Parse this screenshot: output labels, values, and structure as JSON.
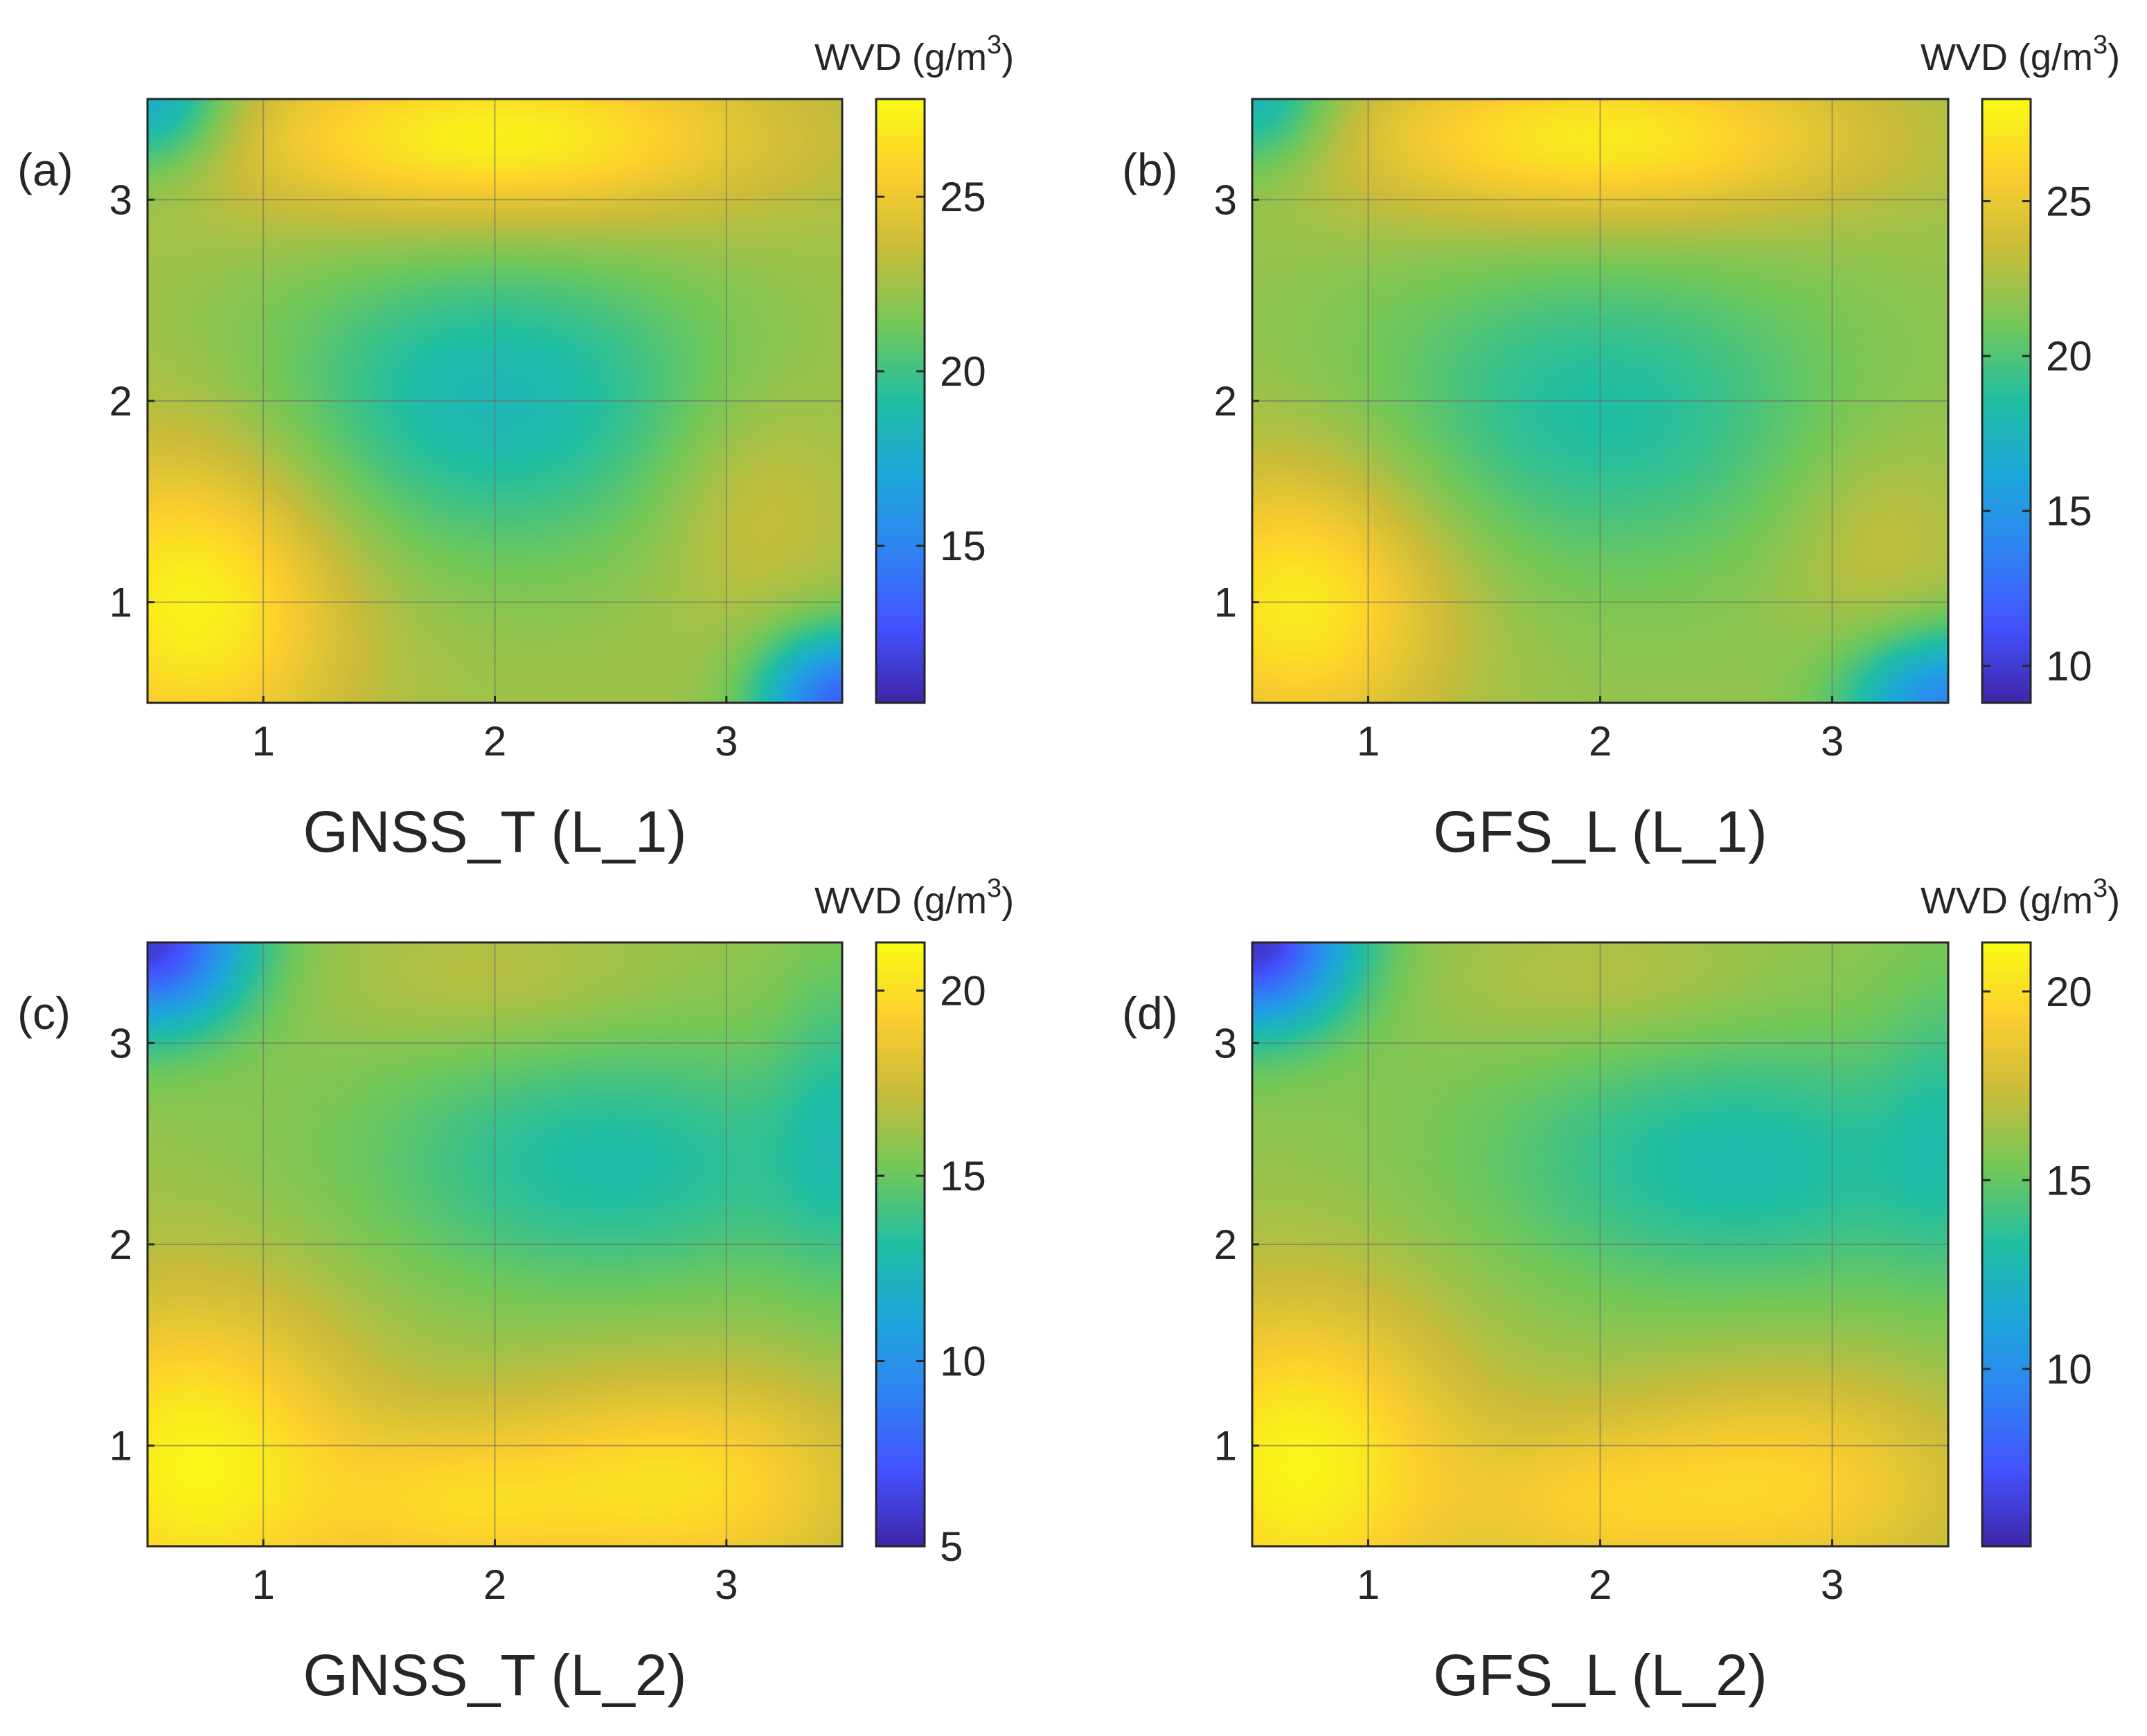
{
  "colormap": [
    "#3e26a8",
    "#4352fe",
    "#2f82f3",
    "#1da7db",
    "#1fbea3",
    "#72c859",
    "#c8bc3a",
    "#fcce2e",
    "#f9fb15"
  ],
  "chart_data": [
    {
      "type": "heatmap",
      "panel_label": "(a)",
      "xlabel": "GNSS_T (L_1)",
      "colorbar_title": "WVD (g/m",
      "colorbar_sup": "3",
      "colorbar_close": ")",
      "xlim": [
        0.5,
        3.5
      ],
      "ylim": [
        0.5,
        3.5
      ],
      "xticks": [
        1,
        2,
        3
      ],
      "yticks": [
        1,
        2,
        3
      ],
      "clim": [
        10.5,
        27.8
      ],
      "cticks": [
        15,
        20,
        25
      ],
      "base": 22.5,
      "features": [
        {
          "x": 0.7,
          "y": 1.0,
          "amp": 5.0,
          "sx": 0.45,
          "sy": 0.55
        },
        {
          "x": 2.0,
          "y": 3.3,
          "amp": 5.0,
          "sx": 0.8,
          "sy": 0.3
        },
        {
          "x": 2.0,
          "y": 2.0,
          "amp": -4.0,
          "sx": 0.7,
          "sy": 0.55
        },
        {
          "x": 0.5,
          "y": 3.5,
          "amp": -5.5,
          "sx": 0.25,
          "sy": 0.25
        },
        {
          "x": 3.5,
          "y": 0.5,
          "amp": -9.0,
          "sx": 0.25,
          "sy": 0.25
        },
        {
          "x": 3.1,
          "y": 1.5,
          "amp": 1.5,
          "sx": 0.3,
          "sy": 0.4
        }
      ]
    },
    {
      "type": "heatmap",
      "panel_label": "(b)",
      "xlabel": "GFS_L (L_1)",
      "colorbar_title": "WVD (g/m",
      "colorbar_sup": "3",
      "colorbar_close": ")",
      "xlim": [
        0.5,
        3.5
      ],
      "ylim": [
        0.5,
        3.5
      ],
      "xticks": [
        1,
        2,
        3
      ],
      "yticks": [
        1,
        2,
        3
      ],
      "clim": [
        8.8,
        28.3
      ],
      "cticks": [
        10,
        15,
        20,
        25
      ],
      "base": 22.0,
      "features": [
        {
          "x": 0.7,
          "y": 1.0,
          "amp": 5.5,
          "sx": 0.45,
          "sy": 0.5
        },
        {
          "x": 2.0,
          "y": 3.3,
          "amp": 5.5,
          "sx": 0.8,
          "sy": 0.3
        },
        {
          "x": 2.0,
          "y": 1.95,
          "amp": -3.5,
          "sx": 0.7,
          "sy": 0.55
        },
        {
          "x": 0.5,
          "y": 3.5,
          "amp": -5.0,
          "sx": 0.25,
          "sy": 0.25
        },
        {
          "x": 3.5,
          "y": 0.5,
          "amp": -8.0,
          "sx": 0.3,
          "sy": 0.25
        },
        {
          "x": 3.2,
          "y": 1.3,
          "amp": 1.5,
          "sx": 0.3,
          "sy": 0.4
        }
      ]
    },
    {
      "type": "heatmap",
      "panel_label": "(c)",
      "xlabel": "GNSS_T (L_2)",
      "colorbar_title": "WVD (g/m",
      "colorbar_sup": "3",
      "colorbar_close": ")",
      "xlim": [
        0.5,
        3.5
      ],
      "ylim": [
        0.5,
        3.5
      ],
      "xticks": [
        1,
        2,
        3
      ],
      "yticks": [
        1,
        2,
        3
      ],
      "clim": [
        5.0,
        21.3
      ],
      "cticks": [
        5,
        10,
        15,
        20
      ],
      "base": 16.0,
      "features": [
        {
          "x": 0.7,
          "y": 0.9,
          "amp": 5.0,
          "sx": 0.5,
          "sy": 0.6
        },
        {
          "x": 2.8,
          "y": 0.8,
          "amp": 4.0,
          "sx": 0.6,
          "sy": 0.4
        },
        {
          "x": 1.8,
          "y": 0.7,
          "amp": 2.5,
          "sx": 0.4,
          "sy": 0.3
        },
        {
          "x": 2.5,
          "y": 2.4,
          "amp": -3.0,
          "sx": 0.75,
          "sy": 0.45
        },
        {
          "x": 0.5,
          "y": 3.5,
          "amp": -10.0,
          "sx": 0.3,
          "sy": 0.3
        },
        {
          "x": 3.5,
          "y": 2.6,
          "amp": -2.0,
          "sx": 0.2,
          "sy": 0.6
        },
        {
          "x": 2.0,
          "y": 3.3,
          "amp": 1.0,
          "sx": 0.5,
          "sy": 0.25
        }
      ]
    },
    {
      "type": "heatmap",
      "panel_label": "(d)",
      "xlabel": "GFS_L (L_2)",
      "colorbar_title": "WVD (g/m",
      "colorbar_sup": "3",
      "colorbar_close": ")",
      "xlim": [
        0.5,
        3.5
      ],
      "ylim": [
        0.5,
        3.5
      ],
      "xticks": [
        1,
        2,
        3
      ],
      "yticks": [
        1,
        2,
        3
      ],
      "clim": [
        5.3,
        21.3
      ],
      "cticks": [
        10,
        15,
        20
      ],
      "base": 16.0,
      "features": [
        {
          "x": 0.7,
          "y": 0.9,
          "amp": 5.0,
          "sx": 0.5,
          "sy": 0.6
        },
        {
          "x": 2.8,
          "y": 0.8,
          "amp": 3.5,
          "sx": 0.6,
          "sy": 0.4
        },
        {
          "x": 1.9,
          "y": 0.7,
          "amp": 2.0,
          "sx": 0.4,
          "sy": 0.3
        },
        {
          "x": 2.6,
          "y": 2.4,
          "amp": -3.0,
          "sx": 0.75,
          "sy": 0.45
        },
        {
          "x": 0.5,
          "y": 3.5,
          "amp": -10.0,
          "sx": 0.3,
          "sy": 0.3
        },
        {
          "x": 3.5,
          "y": 2.6,
          "amp": -1.5,
          "sx": 0.2,
          "sy": 0.6
        },
        {
          "x": 2.0,
          "y": 3.3,
          "amp": 1.0,
          "sx": 0.5,
          "sy": 0.25
        }
      ]
    }
  ]
}
